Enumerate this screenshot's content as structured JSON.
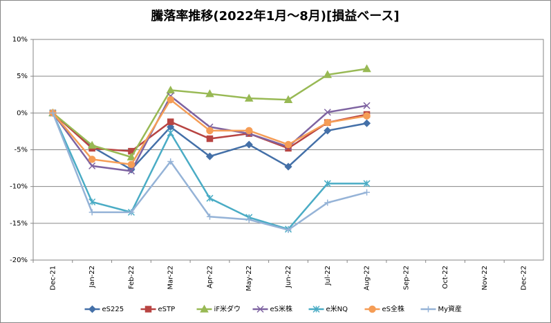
{
  "chart_data": {
    "type": "line",
    "title": "騰落率推移(2022年1月～8月)[損益ベース]",
    "categories": [
      "Dec-21",
      "Jan-22",
      "Feb-22",
      "Mar-22",
      "Apr-22",
      "May-22",
      "Jun-22",
      "Jul-22",
      "Aug-22",
      "Sep-22",
      "Oct-22",
      "Nov-22",
      "Dec-22"
    ],
    "ylim": [
      -20,
      10
    ],
    "yticks": [
      {
        "value": -20,
        "label": "-20%"
      },
      {
        "value": -15,
        "label": "-15%"
      },
      {
        "value": -10,
        "label": "-10%"
      },
      {
        "value": -5,
        "label": "-5%"
      },
      {
        "value": 0,
        "label": "0%"
      },
      {
        "value": 5,
        "label": "5%"
      },
      {
        "value": 10,
        "label": "10%"
      }
    ],
    "grid": true,
    "legend": "bottom",
    "series": [
      {
        "name": "eS225",
        "color": "#4470a8",
        "marker": "diamond",
        "values": [
          0,
          -4.6,
          -7.7,
          -1.9,
          -5.9,
          -4.3,
          -7.3,
          -2.4,
          -1.4,
          null,
          null,
          null,
          null
        ]
      },
      {
        "name": "eSTP",
        "color": "#b84442",
        "marker": "square",
        "values": [
          0,
          -4.8,
          -5.2,
          -1.2,
          -3.5,
          -2.8,
          -4.8,
          -1.3,
          -0.2,
          null,
          null,
          null,
          null
        ]
      },
      {
        "name": "iF米ダウ",
        "color": "#98b954",
        "marker": "triangle",
        "values": [
          0,
          -4.4,
          -6.0,
          3.1,
          2.6,
          2.0,
          1.8,
          5.2,
          6.0,
          null,
          null,
          null,
          null
        ]
      },
      {
        "name": "eS米株",
        "color": "#7e63a1",
        "marker": "x",
        "values": [
          0,
          -7.2,
          -7.9,
          2.3,
          -1.9,
          -2.8,
          -4.6,
          0.1,
          1.0,
          null,
          null,
          null,
          null
        ]
      },
      {
        "name": "e米NQ",
        "color": "#4aacc5",
        "marker": "star",
        "values": [
          0,
          -12.1,
          -13.5,
          -2.7,
          -11.6,
          -14.2,
          -15.8,
          -9.6,
          -9.6,
          null,
          null,
          null,
          null
        ]
      },
      {
        "name": "eS全株",
        "color": "#f59d56",
        "marker": "circle",
        "values": [
          0,
          -6.3,
          -7.0,
          1.8,
          -2.4,
          -2.4,
          -4.3,
          -1.3,
          -0.4,
          null,
          null,
          null,
          null
        ]
      },
      {
        "name": "My資産",
        "color": "#95b3d7",
        "marker": "plus",
        "values": [
          0,
          -13.5,
          -13.5,
          -6.6,
          -14.1,
          -14.5,
          -15.9,
          -12.2,
          -10.8,
          null,
          null,
          null,
          null
        ]
      }
    ]
  }
}
